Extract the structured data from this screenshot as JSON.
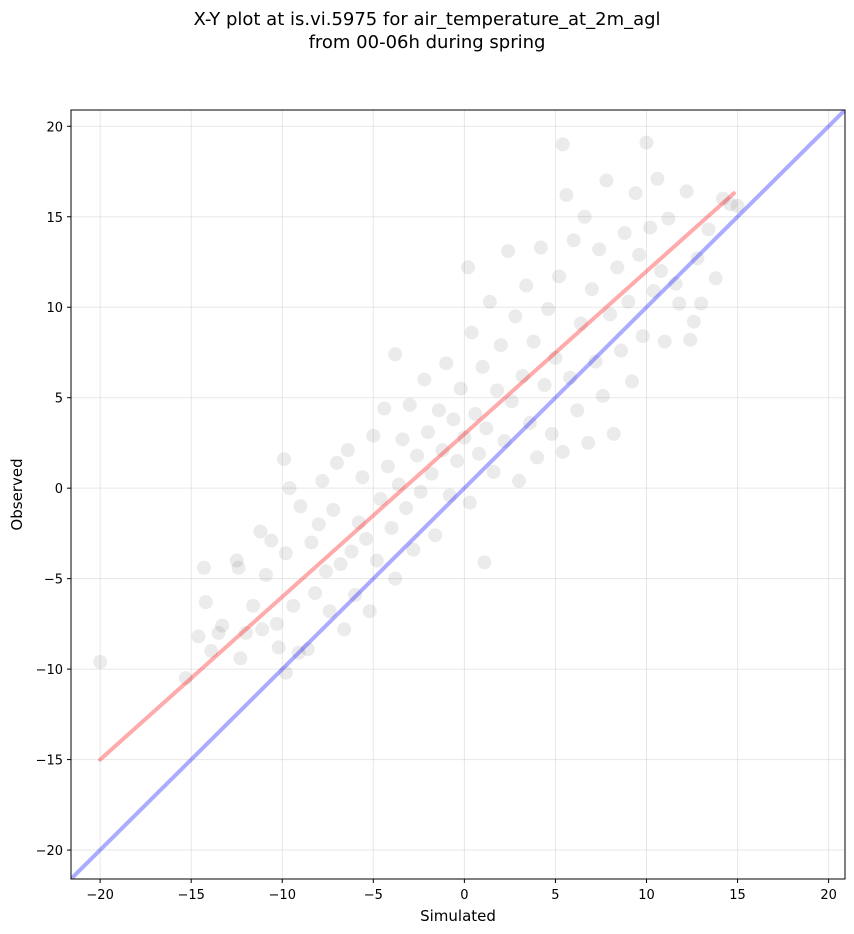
{
  "chart_data": {
    "type": "scatter",
    "title_lines": [
      "X-Y plot at is.vi.5975 for air_temperature_at_2m_agl",
      "from 00-06h during spring"
    ],
    "xlabel": "Simulated",
    "ylabel": "Observed",
    "xlim": [
      -21.6,
      20.9
    ],
    "ylim": [
      -21.6,
      20.9
    ],
    "xticks": [
      -20,
      -15,
      -10,
      -5,
      0,
      5,
      10,
      15,
      20
    ],
    "yticks": [
      -20,
      -15,
      -10,
      -5,
      0,
      5,
      10,
      15,
      20
    ],
    "xtick_labels": [
      "−20",
      "−15",
      "−10",
      "−5",
      "0",
      "5",
      "10",
      "15",
      "20"
    ],
    "ytick_labels": [
      "−20",
      "−15",
      "−10",
      "−5",
      "0",
      "5",
      "10",
      "15",
      "20"
    ],
    "grid": true,
    "series": [
      {
        "kind": "points",
        "color": "#000000",
        "opacity": 0.08,
        "points": [
          [
            -20,
            -9.6
          ],
          [
            -15.3,
            -10.5
          ],
          [
            -14.6,
            -8.2
          ],
          [
            -14.2,
            -6.3
          ],
          [
            -14.3,
            -4.4
          ],
          [
            -13.9,
            -9.0
          ],
          [
            -13.5,
            -8.0
          ],
          [
            -13.3,
            -7.6
          ],
          [
            -12.5,
            -4.0
          ],
          [
            -12.4,
            -4.4
          ],
          [
            -12.3,
            -9.4
          ],
          [
            -12.0,
            -8.0
          ],
          [
            -11.6,
            -6.5
          ],
          [
            -11.2,
            -2.4
          ],
          [
            -11.1,
            -7.8
          ],
          [
            -10.9,
            -4.8
          ],
          [
            -10.6,
            -2.9
          ],
          [
            -10.3,
            -7.5
          ],
          [
            -10.2,
            -8.8
          ],
          [
            -9.9,
            1.6
          ],
          [
            -9.8,
            -10.2
          ],
          [
            -9.8,
            -3.6
          ],
          [
            -9.6,
            0.0
          ],
          [
            -9.4,
            -6.5
          ],
          [
            -9.1,
            -9.1
          ],
          [
            -9.0,
            -1.0
          ],
          [
            -8.6,
            -8.9
          ],
          [
            -8.4,
            -3.0
          ],
          [
            -8.2,
            -5.8
          ],
          [
            -8.0,
            -2.0
          ],
          [
            -7.8,
            0.4
          ],
          [
            -7.6,
            -4.6
          ],
          [
            -7.4,
            -6.8
          ],
          [
            -7.2,
            -1.2
          ],
          [
            -7.0,
            1.4
          ],
          [
            -6.8,
            -4.2
          ],
          [
            -6.6,
            -7.8
          ],
          [
            -6.4,
            2.1
          ],
          [
            -6.2,
            -3.5
          ],
          [
            -6.0,
            -5.9
          ],
          [
            -5.8,
            -1.9
          ],
          [
            -5.6,
            0.6
          ],
          [
            -5.4,
            -2.8
          ],
          [
            -5.2,
            -6.8
          ],
          [
            -5.0,
            2.9
          ],
          [
            -4.8,
            -4.0
          ],
          [
            -4.6,
            -0.6
          ],
          [
            -4.4,
            4.4
          ],
          [
            -4.2,
            1.2
          ],
          [
            -4.0,
            -2.2
          ],
          [
            -3.8,
            -5.0
          ],
          [
            -3.8,
            7.4
          ],
          [
            -3.6,
            0.2
          ],
          [
            -3.4,
            2.7
          ],
          [
            -3.2,
            -1.1
          ],
          [
            -3.0,
            4.6
          ],
          [
            -2.8,
            -3.4
          ],
          [
            -2.6,
            1.8
          ],
          [
            -2.4,
            -0.2
          ],
          [
            -2.2,
            6.0
          ],
          [
            -2.0,
            3.1
          ],
          [
            -1.8,
            0.8
          ],
          [
            -1.6,
            -2.6
          ],
          [
            -1.4,
            4.3
          ],
          [
            -1.2,
            2.1
          ],
          [
            -1.0,
            6.9
          ],
          [
            -0.8,
            -0.4
          ],
          [
            -0.6,
            3.8
          ],
          [
            -0.4,
            1.5
          ],
          [
            -0.2,
            5.5
          ],
          [
            0.0,
            2.8
          ],
          [
            0.2,
            12.2
          ],
          [
            0.3,
            -0.8
          ],
          [
            0.4,
            8.6
          ],
          [
            0.6,
            4.1
          ],
          [
            0.8,
            1.9
          ],
          [
            1.0,
            6.7
          ],
          [
            1.1,
            -4.1
          ],
          [
            1.2,
            3.3
          ],
          [
            1.4,
            10.3
          ],
          [
            1.6,
            0.9
          ],
          [
            1.8,
            5.4
          ],
          [
            2.0,
            7.9
          ],
          [
            2.2,
            2.6
          ],
          [
            2.4,
            13.1
          ],
          [
            2.6,
            4.8
          ],
          [
            2.8,
            9.5
          ],
          [
            3.0,
            0.4
          ],
          [
            3.2,
            6.2
          ],
          [
            3.4,
            11.2
          ],
          [
            3.6,
            3.6
          ],
          [
            3.8,
            8.1
          ],
          [
            4.0,
            1.7
          ],
          [
            4.2,
            13.3
          ],
          [
            4.4,
            5.7
          ],
          [
            4.6,
            9.9
          ],
          [
            4.8,
            3.0
          ],
          [
            5.0,
            7.2
          ],
          [
            5.2,
            11.7
          ],
          [
            5.4,
            19.0
          ],
          [
            5.4,
            2.0
          ],
          [
            5.6,
            16.2
          ],
          [
            5.8,
            6.1
          ],
          [
            6.0,
            13.7
          ],
          [
            6.2,
            4.3
          ],
          [
            6.4,
            9.1
          ],
          [
            6.6,
            15.0
          ],
          [
            6.8,
            2.5
          ],
          [
            7.0,
            11.0
          ],
          [
            7.2,
            7.0
          ],
          [
            7.4,
            13.2
          ],
          [
            7.6,
            5.1
          ],
          [
            7.8,
            17.0
          ],
          [
            8.0,
            9.6
          ],
          [
            8.2,
            3.0
          ],
          [
            8.4,
            12.2
          ],
          [
            8.6,
            7.6
          ],
          [
            8.8,
            14.1
          ],
          [
            9.0,
            10.3
          ],
          [
            9.2,
            5.9
          ],
          [
            9.4,
            16.3
          ],
          [
            9.6,
            12.9
          ],
          [
            9.8,
            8.4
          ],
          [
            10.0,
            19.1
          ],
          [
            10.2,
            14.4
          ],
          [
            10.4,
            10.9
          ],
          [
            10.6,
            17.1
          ],
          [
            10.8,
            12.0
          ],
          [
            11.0,
            8.1
          ],
          [
            11.2,
            14.9
          ],
          [
            11.6,
            11.3
          ],
          [
            11.8,
            10.2
          ],
          [
            12.2,
            16.4
          ],
          [
            12.4,
            8.2
          ],
          [
            12.6,
            9.2
          ],
          [
            12.8,
            12.7
          ],
          [
            13.0,
            10.2
          ],
          [
            13.4,
            14.3
          ],
          [
            13.8,
            11.6
          ],
          [
            14.2,
            16.0
          ],
          [
            14.6,
            15.7
          ],
          [
            15.0,
            15.6
          ]
        ]
      },
      {
        "kind": "line",
        "name": "",
        "color": "#ff0000",
        "opacity": 0.33,
        "points": [
          [
            -20,
            -15.0
          ],
          [
            14.8,
            16.3
          ]
        ]
      },
      {
        "kind": "line",
        "name": "",
        "color": "#0000ff",
        "opacity": 0.33,
        "points": [
          [
            -21.6,
            -21.6
          ],
          [
            20.9,
            20.9
          ]
        ]
      }
    ]
  }
}
